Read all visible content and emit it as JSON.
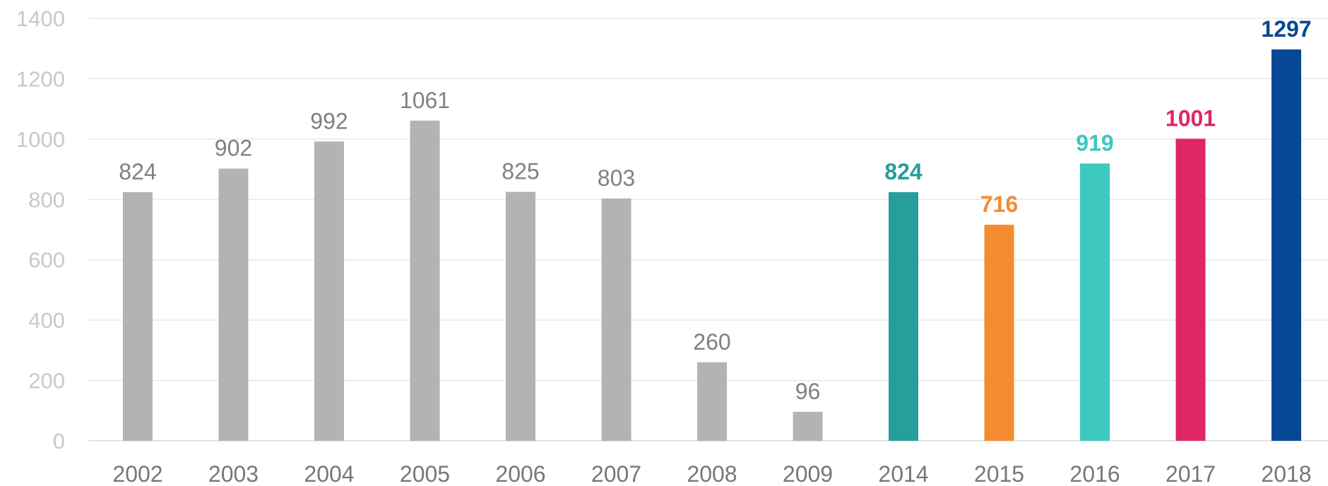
{
  "chart_data": {
    "type": "bar",
    "categories": [
      "2002",
      "2003",
      "2004",
      "2005",
      "2006",
      "2007",
      "2008",
      "2009",
      "2014",
      "2015",
      "2016",
      "2017",
      "2018"
    ],
    "values": [
      824,
      902,
      992,
      1061,
      825,
      803,
      260,
      96,
      824,
      716,
      919,
      1001,
      1297
    ],
    "value_labels": [
      "824",
      "902",
      "992",
      "1061",
      "825",
      "803",
      "260",
      "96",
      "824",
      "716",
      "919",
      "1001",
      "1297"
    ],
    "bar_colors": [
      "#b3b3b3",
      "#b3b3b3",
      "#b3b3b3",
      "#b3b3b3",
      "#b3b3b3",
      "#b3b3b3",
      "#b3b3b3",
      "#b3b3b3",
      "#269e99",
      "#f58b31",
      "#3dc8c0",
      "#df2667",
      "#064896"
    ],
    "label_colors": [
      "#808080",
      "#808080",
      "#808080",
      "#808080",
      "#808080",
      "#808080",
      "#808080",
      "#808080",
      "#269e99",
      "#f58b31",
      "#3dc8c0",
      "#df2667",
      "#064896"
    ],
    "label_bold": [
      false,
      false,
      false,
      false,
      false,
      false,
      false,
      false,
      true,
      true,
      true,
      true,
      true
    ],
    "y_ticks": [
      "0",
      "200",
      "400",
      "600",
      "800",
      "1000",
      "1200",
      "1400"
    ],
    "ylim": [
      0,
      1400
    ],
    "grid": true,
    "title": "",
    "xlabel": "",
    "ylabel": ""
  }
}
